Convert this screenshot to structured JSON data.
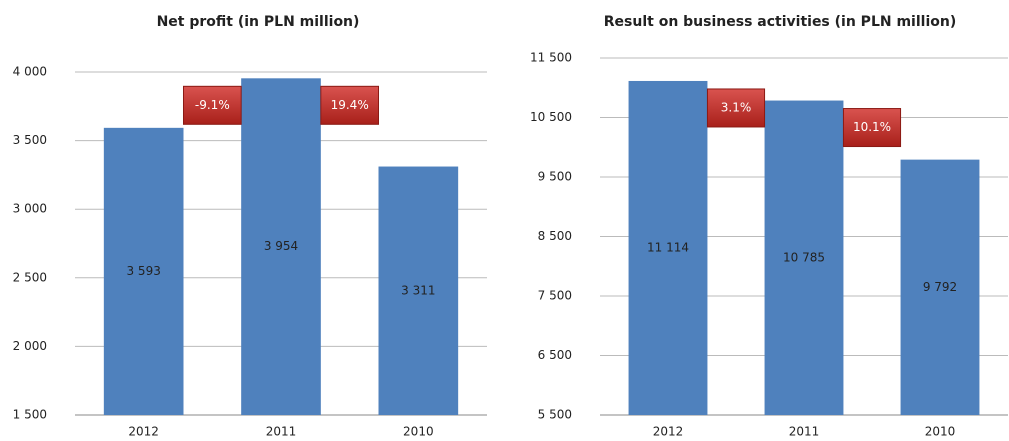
{
  "chart_data": [
    {
      "type": "bar",
      "title": "Net profit (in PLN million)",
      "categories": [
        "2012",
        "2011",
        "2010"
      ],
      "values": [
        3593,
        3954,
        3311
      ],
      "value_labels": [
        "3 593",
        "3 954",
        "3 311"
      ],
      "color": "#4f81bd",
      "ylim": [
        1500,
        4000
      ],
      "yticks": [
        {
          "value": 1500,
          "label": "1 500"
        },
        {
          "value": 2000,
          "label": "2 000"
        },
        {
          "value": 2500,
          "label": "2 500"
        },
        {
          "value": 3000,
          "label": "3 000"
        },
        {
          "value": 3500,
          "label": "3 500"
        },
        {
          "value": 4000,
          "label": "4 000"
        }
      ],
      "grid": true,
      "annotations": [
        "-9.1%",
        "19.4%"
      ]
    },
    {
      "type": "bar",
      "title": "Result on business activities (in PLN million)",
      "categories": [
        "2012",
        "2011",
        "2010"
      ],
      "values": [
        11114,
        10785,
        9792
      ],
      "value_labels": [
        "11 114",
        "10 785",
        "9 792"
      ],
      "color": "#4f81bd",
      "ylim": [
        5500,
        11500
      ],
      "yticks": [
        {
          "value": 5500,
          "label": "5 500"
        },
        {
          "value": 6500,
          "label": "6 500"
        },
        {
          "value": 7500,
          "label": "7 500"
        },
        {
          "value": 8500,
          "label": "8 500"
        },
        {
          "value": 9500,
          "label": "9 500"
        },
        {
          "value": 10500,
          "label": "10 500"
        },
        {
          "value": 11500,
          "label": "11 500"
        }
      ],
      "grid": true,
      "annotations": [
        "3.1%",
        "10.1%"
      ]
    }
  ]
}
